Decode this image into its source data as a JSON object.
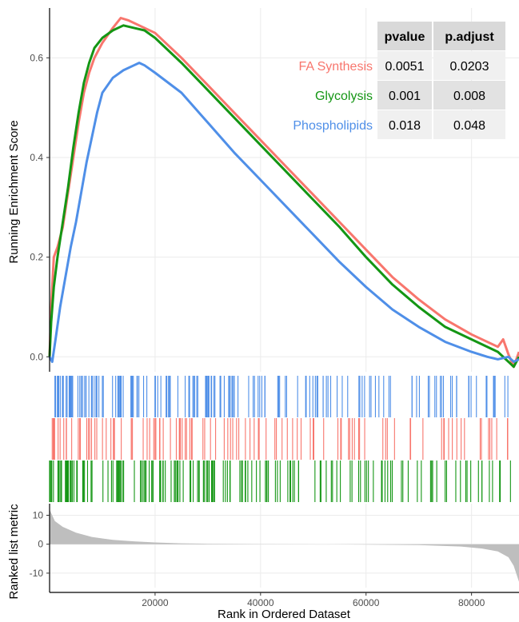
{
  "chart_data": {
    "type": "line",
    "subtype": "gsea-enrichment-plot",
    "ylabel": "Running Enrichment Score",
    "xlabel": "Rank in Ordered Dataset",
    "xlim": [
      0,
      89000
    ],
    "x_ticks": [
      20000,
      40000,
      60000,
      80000
    ],
    "x_tick_labels": [
      "20000",
      "40000",
      "60000",
      "80000"
    ],
    "ylim": [
      -0.03,
      0.7
    ],
    "y_ticks": [
      0.0,
      0.2,
      0.4,
      0.6
    ],
    "y_tick_labels": [
      "0.0",
      "0.2",
      "0.4",
      "0.6"
    ],
    "grid": true,
    "series": [
      {
        "name": "FA Synthesis",
        "color": "#F8766D",
        "x": [
          0,
          300,
          800,
          1500,
          2500,
          3500,
          4500,
          5500,
          6500,
          7500,
          8500,
          10000,
          12000,
          13500,
          15000,
          17000,
          20000,
          25000,
          30000,
          35000,
          40000,
          45000,
          50000,
          55000,
          60000,
          65000,
          70000,
          75000,
          80000,
          85000,
          86000,
          87000,
          88000,
          89000
        ],
        "values": [
          0.0,
          0.1,
          0.2,
          0.22,
          0.26,
          0.33,
          0.4,
          0.47,
          0.53,
          0.57,
          0.6,
          0.63,
          0.66,
          0.68,
          0.675,
          0.665,
          0.65,
          0.6,
          0.545,
          0.49,
          0.435,
          0.38,
          0.325,
          0.27,
          0.215,
          0.16,
          0.115,
          0.075,
          0.045,
          0.02,
          0.035,
          0.005,
          -0.02,
          0.01
        ]
      },
      {
        "name": "Glycolysis",
        "color": "#149614",
        "x": [
          0,
          300,
          800,
          1500,
          2500,
          3500,
          4500,
          5500,
          6500,
          7500,
          8500,
          10000,
          12000,
          14000,
          16000,
          18000,
          20000,
          25000,
          30000,
          35000,
          40000,
          45000,
          50000,
          55000,
          60000,
          65000,
          70000,
          75000,
          80000,
          85000,
          87000,
          88000,
          89000
        ],
        "values": [
          0.0,
          0.07,
          0.14,
          0.2,
          0.27,
          0.34,
          0.42,
          0.49,
          0.55,
          0.59,
          0.62,
          0.64,
          0.655,
          0.665,
          0.66,
          0.655,
          0.64,
          0.59,
          0.535,
          0.48,
          0.425,
          0.37,
          0.315,
          0.26,
          0.2,
          0.145,
          0.1,
          0.06,
          0.035,
          0.01,
          -0.01,
          -0.02,
          0.0
        ]
      },
      {
        "name": "Phospholipids",
        "color": "#4F8FE8",
        "x": [
          0,
          500,
          1200,
          2000,
          3000,
          4000,
          5000,
          6000,
          7000,
          8000,
          9000,
          10000,
          12000,
          14000,
          16000,
          17000,
          18000,
          20000,
          25000,
          30000,
          35000,
          40000,
          45000,
          50000,
          55000,
          60000,
          65000,
          70000,
          75000,
          80000,
          83000,
          85000,
          87000,
          88000,
          89000
        ],
        "values": [
          0.0,
          -0.01,
          0.04,
          0.1,
          0.16,
          0.22,
          0.27,
          0.33,
          0.39,
          0.44,
          0.49,
          0.53,
          0.56,
          0.575,
          0.585,
          0.59,
          0.585,
          0.57,
          0.53,
          0.47,
          0.41,
          0.355,
          0.3,
          0.245,
          0.19,
          0.14,
          0.095,
          0.06,
          0.03,
          0.01,
          0.0,
          -0.005,
          0.0,
          -0.01,
          -0.005
        ]
      }
    ],
    "legend_table": {
      "placement": "top-right",
      "headers": [
        "pvalue",
        "p.adjust"
      ],
      "rows": [
        {
          "name": "FA Synthesis",
          "color": "#F8766D",
          "pvalue": "0.0051",
          "padjust": "0.0203"
        },
        {
          "name": "Glycolysis",
          "color": "#149614",
          "pvalue": "0.001",
          "padjust": "0.008"
        },
        {
          "name": "Phospholipids",
          "color": "#4F8FE8",
          "pvalue": "0.018",
          "padjust": "0.048"
        }
      ]
    },
    "gene_hits": {
      "Phospholipids": {
        "start": 1000,
        "end": 88000,
        "density": "dense",
        "color": "#4F8FE8"
      },
      "FA Synthesis": {
        "start": 0,
        "end": 88000,
        "density": "medium",
        "color": "#F8766D"
      },
      "Glycolysis": {
        "start": 0,
        "end": 88000,
        "density": "dense",
        "color": "#149614"
      }
    },
    "ranked_metric": {
      "ylabel": "Ranked list metric",
      "ylim": [
        -15,
        14
      ],
      "y_ticks": [
        10,
        0,
        -10
      ],
      "y_tick_labels": [
        "10",
        "0",
        "-10"
      ],
      "fill_color": "#BEBEBE",
      "x": [
        0,
        1000,
        2500,
        5000,
        8000,
        12000,
        16000,
        20000,
        25000,
        30000,
        40000,
        47000,
        52000,
        60000,
        70000,
        78000,
        82000,
        85000,
        87000,
        88000,
        89000
      ],
      "values": [
        12,
        8,
        6,
        4,
        2.5,
        1.5,
        1,
        0.6,
        0.3,
        0.15,
        0.05,
        0.02,
        -0.02,
        -0.1,
        -0.3,
        -0.8,
        -1.5,
        -2.5,
        -4.5,
        -7.5,
        -13
      ]
    }
  }
}
